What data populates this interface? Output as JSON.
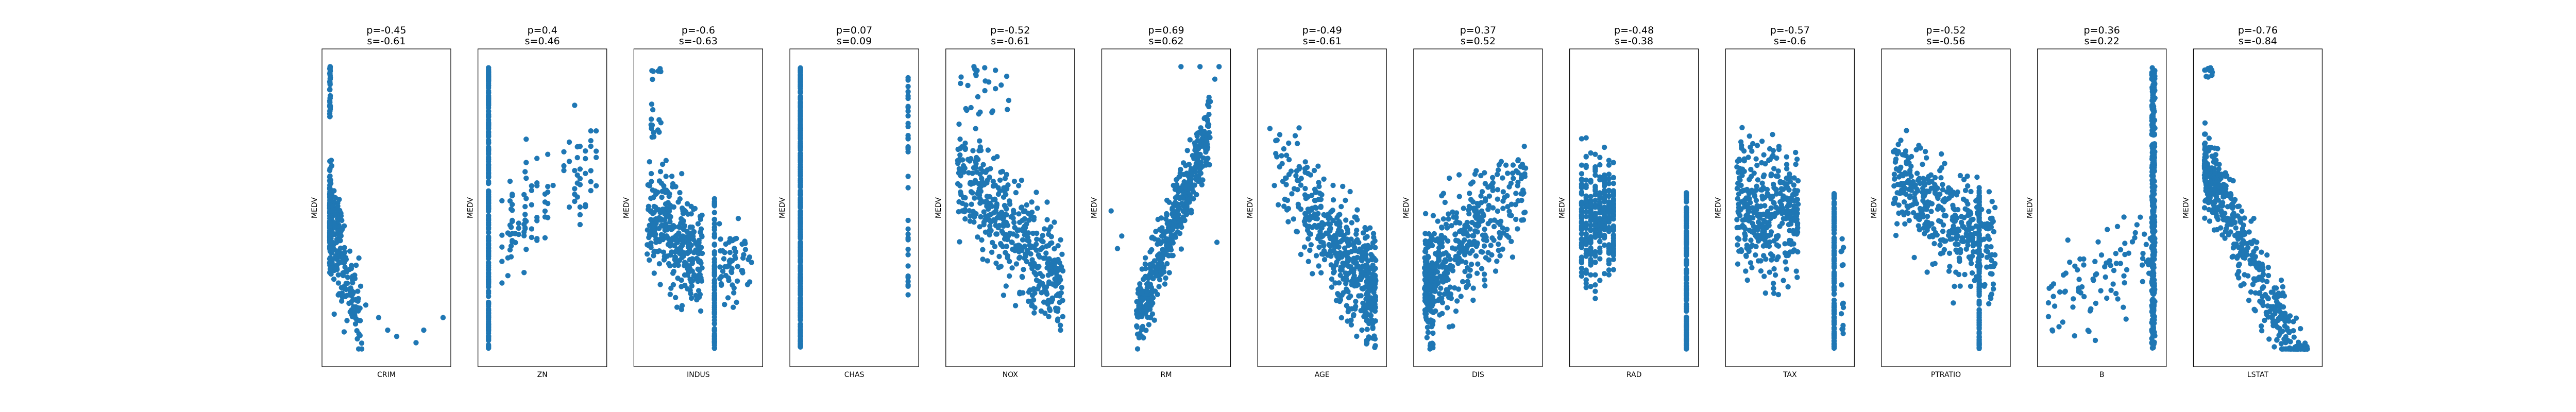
{
  "figure": {
    "marker_color": "#1f77b4",
    "ylabel": "MEDV"
  },
  "chart_data": [
    {
      "type": "scatter",
      "xlabel": "CRIM",
      "ylabel": "MEDV",
      "title_line1": "p=-0.45",
      "title_line2": "s=-0.61",
      "xlim": [
        -2,
        90
      ],
      "ylim": [
        3,
        52
      ]
    },
    {
      "type": "scatter",
      "xlabel": "ZN",
      "ylabel": "MEDV",
      "title_line1": "p=0.4",
      "title_line2": "s=0.46",
      "xlim": [
        -5,
        105
      ],
      "ylim": [
        3,
        52
      ]
    },
    {
      "type": "scatter",
      "xlabel": "INDUS",
      "ylabel": "MEDV",
      "title_line1": "p=-0.6",
      "title_line2": "s=-0.63",
      "xlim": [
        -1,
        29
      ],
      "ylim": [
        3,
        52
      ]
    },
    {
      "type": "scatter",
      "xlabel": "CHAS",
      "ylabel": "MEDV",
      "title_line1": "p=0.07",
      "title_line2": "s=0.09",
      "xlim": [
        -0.05,
        1.05
      ],
      "ylim": [
        3,
        52
      ]
    },
    {
      "type": "scatter",
      "xlabel": "NOX",
      "ylabel": "MEDV",
      "title_line1": "p=-0.52",
      "title_line2": "s=-0.61",
      "xlim": [
        0.36,
        0.9
      ],
      "ylim": [
        3,
        52
      ]
    },
    {
      "type": "scatter",
      "xlabel": "RM",
      "ylabel": "MEDV",
      "title_line1": "p=0.69",
      "title_line2": "s=0.62",
      "xlim": [
        3.4,
        9.0
      ],
      "ylim": [
        3,
        52
      ]
    },
    {
      "type": "scatter",
      "xlabel": "AGE",
      "ylabel": "MEDV",
      "title_line1": "p=-0.49",
      "title_line2": "s=-0.61",
      "xlim": [
        -2,
        105
      ],
      "ylim": [
        3,
        52
      ]
    },
    {
      "type": "scatter",
      "xlabel": "DIS",
      "ylabel": "MEDV",
      "title_line1": "p=0.37",
      "title_line2": "s=0.52",
      "xlim": [
        0.5,
        12.7
      ],
      "ylim": [
        3,
        52
      ]
    },
    {
      "type": "scatter",
      "xlabel": "RAD",
      "ylabel": "MEDV",
      "title_line1": "p=-0.48",
      "title_line2": "s=-0.38",
      "xlim": [
        -0.5,
        25.5
      ],
      "ylim": [
        3,
        52
      ]
    },
    {
      "type": "scatter",
      "xlabel": "TAX",
      "ylabel": "MEDV",
      "title_line1": "p=-0.57",
      "title_line2": "s=-0.6",
      "xlim": [
        160,
        740
      ],
      "ylim": [
        3,
        52
      ]
    },
    {
      "type": "scatter",
      "xlabel": "PTRATIO",
      "ylabel": "MEDV",
      "title_line1": "p=-0.52",
      "title_line2": "s=-0.56",
      "xlim": [
        12,
        22.5
      ],
      "ylim": [
        3,
        52
      ]
    },
    {
      "type": "scatter",
      "xlabel": "B",
      "ylabel": "MEDV",
      "title_line1": "p=0.36",
      "title_line2": "s=0.22",
      "xlim": [
        -20,
        420
      ],
      "ylim": [
        3,
        52
      ]
    },
    {
      "type": "scatter",
      "xlabel": "LSTAT",
      "ylabel": "MEDV",
      "title_line1": "p=-0.76",
      "title_line2": "s=-0.84",
      "xlim": [
        0,
        40
      ],
      "ylim": [
        3,
        52
      ]
    }
  ]
}
